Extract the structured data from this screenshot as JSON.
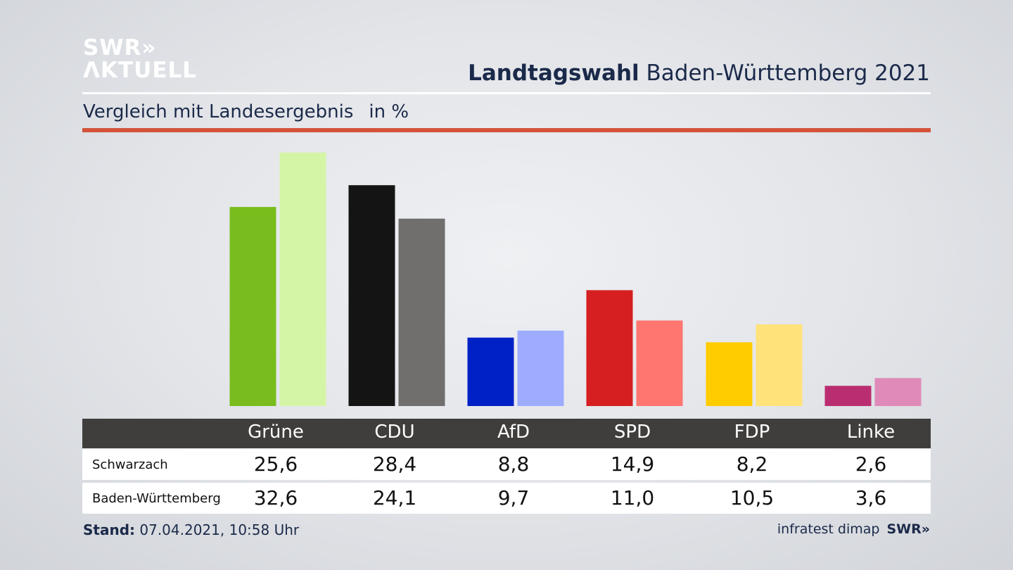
{
  "logo": {
    "line1": "SWR»",
    "line2": "ΛKTUELL"
  },
  "title": {
    "bold": "Landtagswahl",
    "rest": " Baden-Württemberg 2021"
  },
  "subtitle": "Vergleich mit Landesergebnis",
  "unit": "in %",
  "chart_data": {
    "type": "bar",
    "categories": [
      "Grüne",
      "CDU",
      "AfD",
      "SPD",
      "FDP",
      "Linke"
    ],
    "series": [
      {
        "name": "Schwarzach",
        "values": [
          25.6,
          28.4,
          8.8,
          14.9,
          8.2,
          2.6
        ],
        "labels": [
          "25,6",
          "28,4",
          "8,8",
          "14,9",
          "8,2",
          "2,6"
        ]
      },
      {
        "name": "Baden-Württemberg",
        "values": [
          32.6,
          24.1,
          9.7,
          11.0,
          10.5,
          3.6
        ],
        "labels": [
          "32,6",
          "24,1",
          "9,7",
          "11,0",
          "10,5",
          "3,6"
        ]
      }
    ],
    "colors": [
      [
        "#78bd1d",
        "#d5f5a6"
      ],
      [
        "#141414",
        "#706f6d"
      ],
      [
        "#0021c6",
        "#9eacff"
      ],
      [
        "#d51f20",
        "#ff7671"
      ],
      [
        "#ffcc00",
        "#ffe27a"
      ],
      [
        "#bb2d71",
        "#df8ab8"
      ]
    ],
    "ylim": [
      0,
      33
    ]
  },
  "footer": {
    "label": "Stand:",
    "value": " 07.04.2021, 10:58 Uhr"
  },
  "source": {
    "text": "infratest dimap",
    "brand": "SWR»"
  }
}
